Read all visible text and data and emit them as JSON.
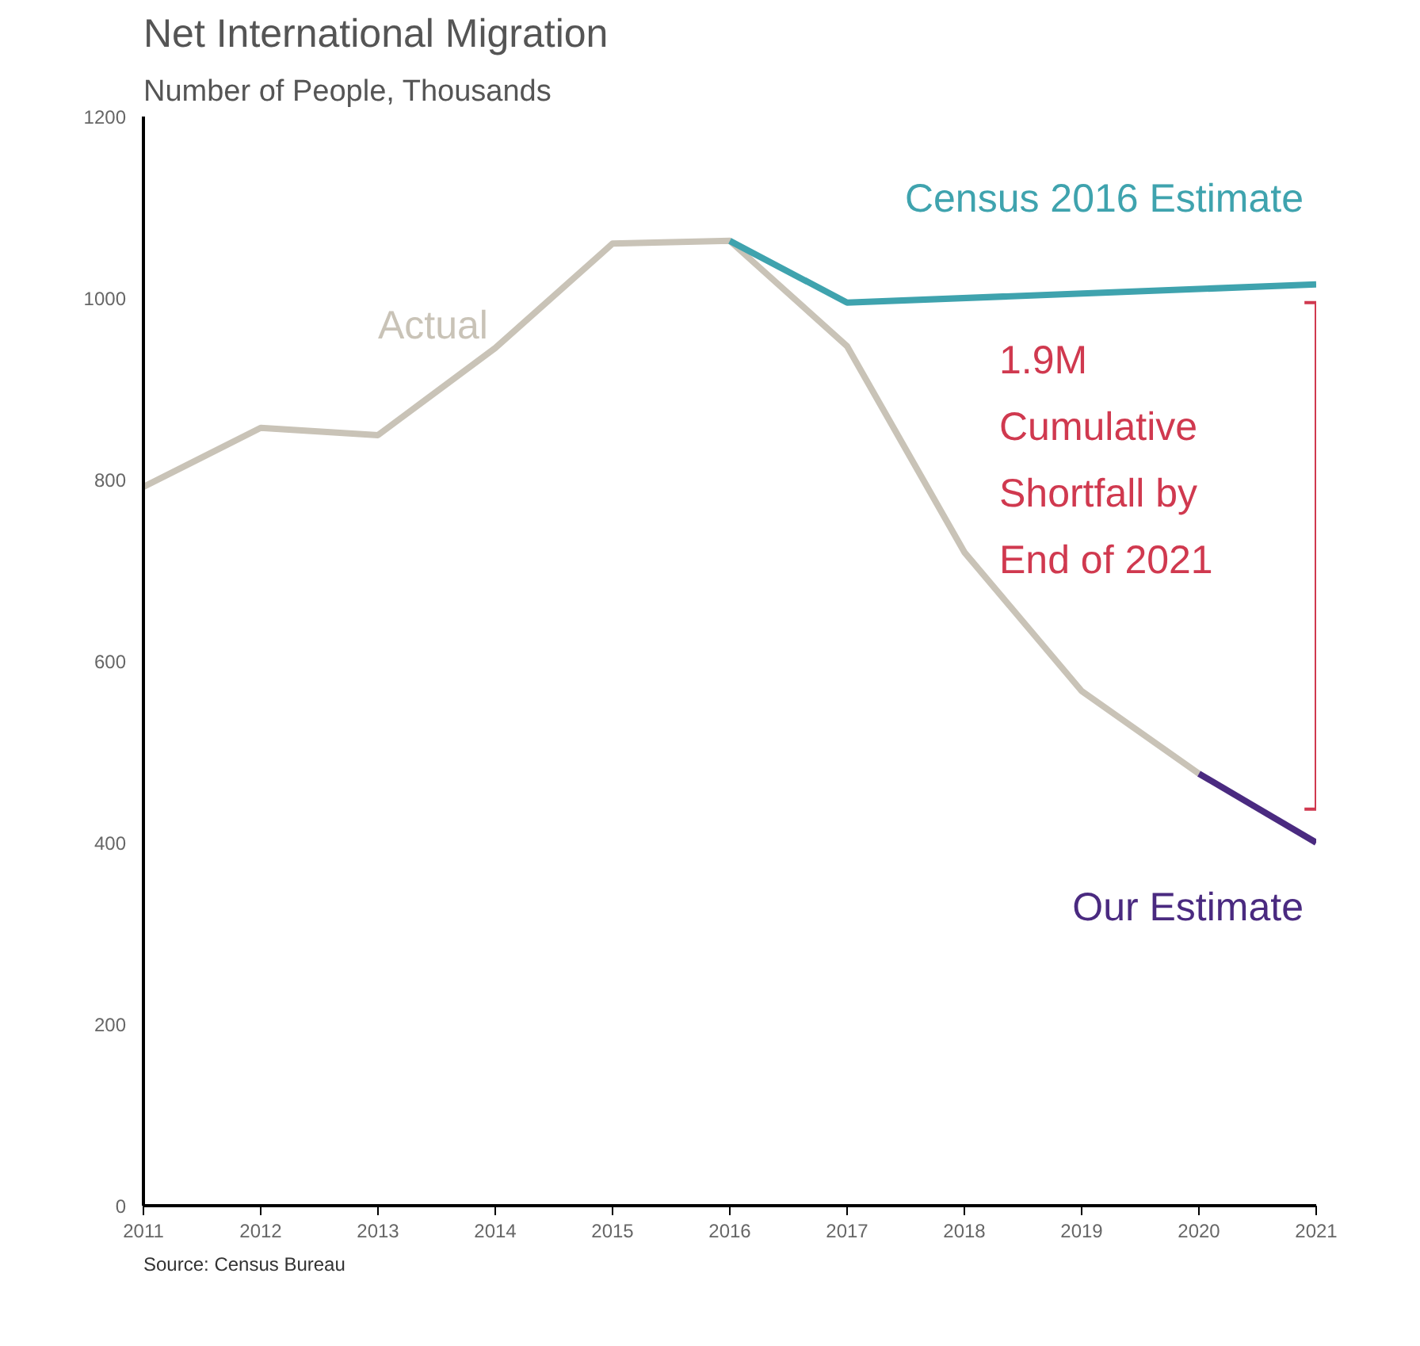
{
  "chart_data": {
    "type": "line",
    "title": "Net International Migration",
    "subtitle": "Number of People, Thousands",
    "xlim": [
      2011,
      2021
    ],
    "xticks": [
      2011,
      2012,
      2013,
      2014,
      2015,
      2016,
      2017,
      2018,
      2019,
      2020,
      2021
    ],
    "ylim": [
      0,
      1200
    ],
    "yticks": [
      0,
      200,
      400,
      600,
      800,
      1000,
      1200
    ],
    "grid": false,
    "legend": false,
    "series": [
      {
        "name": "Actual",
        "color": "#c9c3b7",
        "x": [
          2011,
          2012,
          2013,
          2014,
          2015,
          2016,
          2017,
          2018,
          2019,
          2020
        ],
        "values": [
          792,
          857,
          849,
          945,
          1060,
          1063,
          947,
          720,
          567,
          476
        ]
      },
      {
        "name": "Census 2016 Estimate",
        "color": "#3fa3ae",
        "x": [
          2016,
          2017,
          2021
        ],
        "values": [
          1063,
          995,
          1015
        ]
      },
      {
        "name": "Our Estimate",
        "color": "#4a2a80",
        "x": [
          2020,
          2021
        ],
        "values": [
          476,
          400
        ]
      },
      {
        "color": "#d0394f",
        "x": [
          2020.9,
          2021,
          2021,
          2020.9
        ],
        "values": [
          995,
          995,
          437,
          437
        ]
      }
    ],
    "annotations": [
      "1.9M\nCumulative\nShortfall by\nEnd of 2021",
      "Source: Census Bureau"
    ]
  }
}
